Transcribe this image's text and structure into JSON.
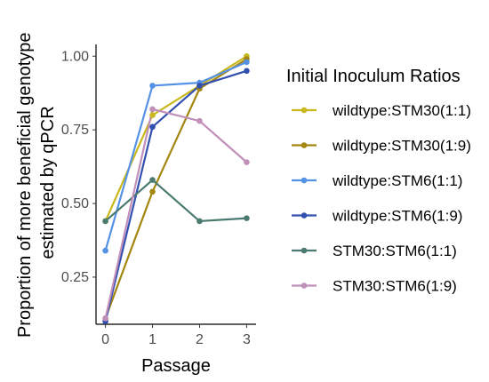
{
  "chart_data": {
    "type": "line",
    "xlabel": "Passage",
    "ylabel_lines": [
      "Proportion of more beneficial genotype",
      "estimated by qPCR"
    ],
    "x": [
      0,
      1,
      2,
      3
    ],
    "x_ticks": [
      "0",
      "1",
      "2",
      "3"
    ],
    "y_ticks": [
      "0.25",
      "0.50",
      "0.75",
      "1.00"
    ],
    "y_tick_values": [
      0.25,
      0.5,
      0.75,
      1.0
    ],
    "xlim": [
      -0.2,
      3.2
    ],
    "ylim": [
      0.09,
      1.04
    ],
    "grid": false,
    "legend_title": "Initial Inoculum Ratios",
    "legend_position": "right",
    "series": [
      {
        "name": "wildtype:STM30(1:1)",
        "color": "#c9b81e",
        "values": [
          0.44,
          0.8,
          0.9,
          1.0
        ]
      },
      {
        "name": "wildtype:STM30(1:9)",
        "color": "#a3860f",
        "values": [
          0.11,
          0.54,
          0.89,
          0.99
        ]
      },
      {
        "name": "wildtype:STM6(1:1)",
        "color": "#5592e6",
        "values": [
          0.34,
          0.9,
          0.91,
          0.98
        ]
      },
      {
        "name": "wildtype:STM6(1:9)",
        "color": "#3250b0",
        "values": [
          0.1,
          0.76,
          0.9,
          0.95
        ]
      },
      {
        "name": "STM30:STM6(1:1)",
        "color": "#4a7a70",
        "values": [
          0.44,
          0.58,
          0.44,
          0.45
        ]
      },
      {
        "name": "STM30:STM6(1:9)",
        "color": "#c08fba",
        "values": [
          0.11,
          0.82,
          0.78,
          0.64
        ]
      }
    ]
  }
}
